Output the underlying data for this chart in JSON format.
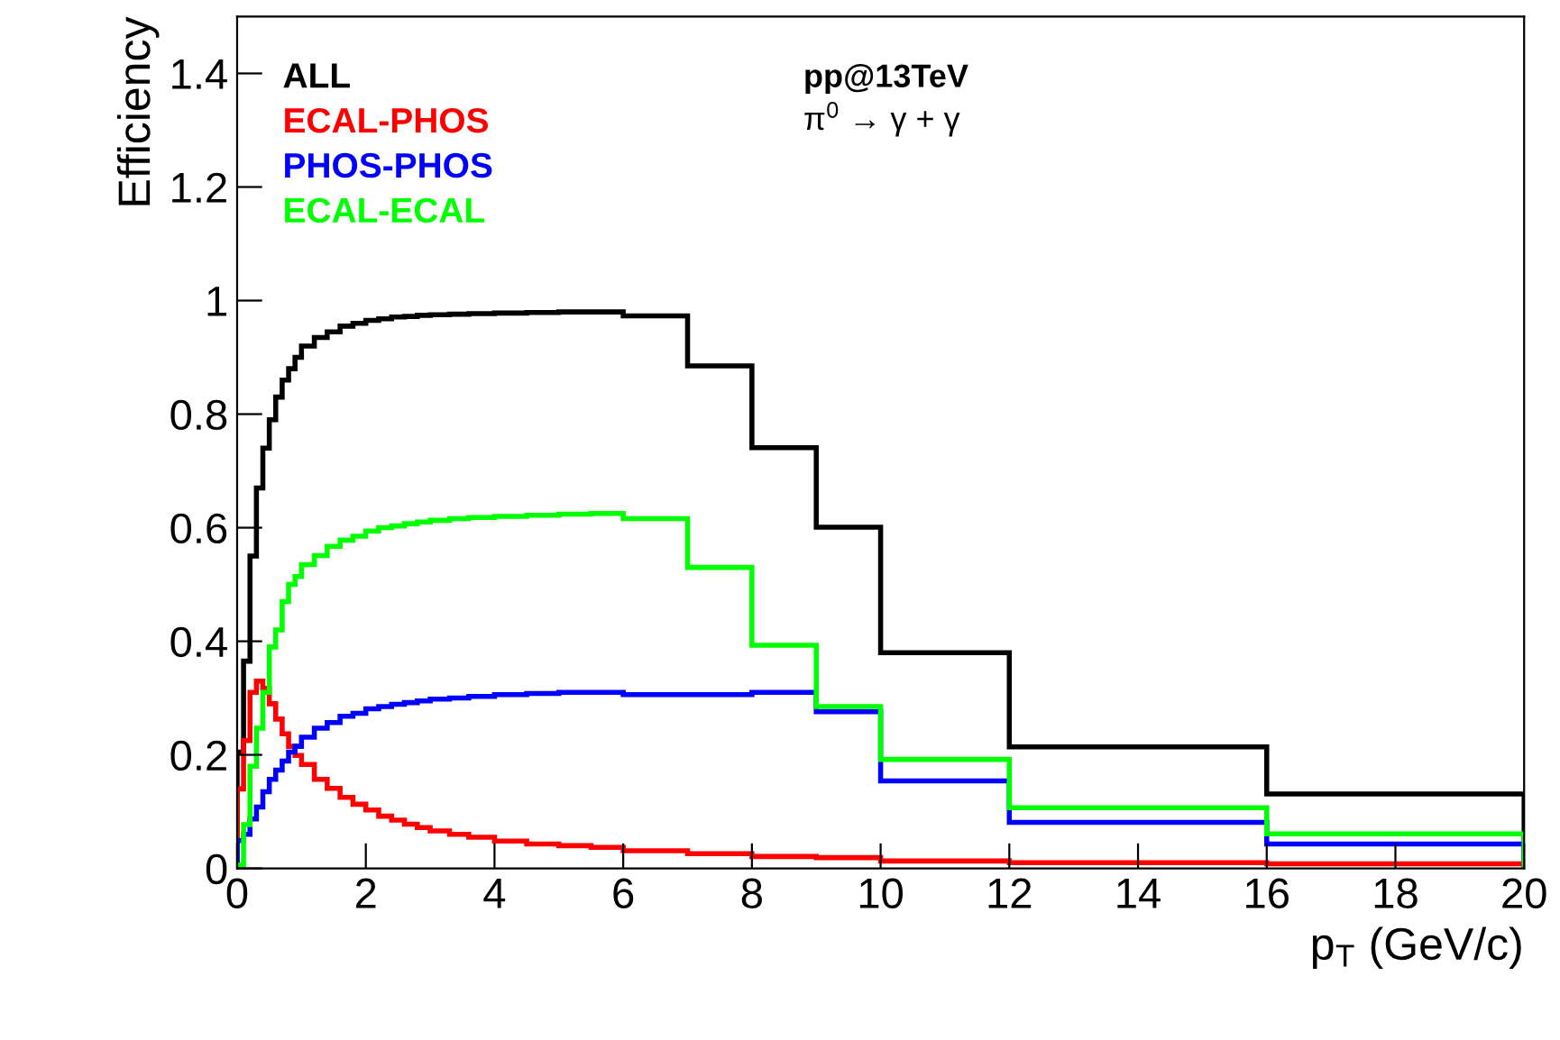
{
  "chart_data": {
    "type": "histogram",
    "xlabel": "p$_{T}$ (GeV/c)",
    "ylabel": "Efficiency",
    "annotations": [
      "pp@13TeV",
      "π$^{0}$ → γ + γ"
    ],
    "bins": [
      0,
      0.1,
      0.2,
      0.3,
      0.4,
      0.5,
      0.6,
      0.7,
      0.8,
      0.9,
      1.0,
      1.2,
      1.4,
      1.6,
      1.8,
      2.0,
      2.2,
      2.4,
      2.6,
      2.8,
      3.0,
      3.3,
      3.6,
      4.0,
      4.5,
      5.0,
      5.5,
      6,
      7,
      8,
      9,
      10,
      12,
      16,
      20
    ],
    "series": [
      {
        "name": "ALL",
        "color": "#000000",
        "values": [
          0.205,
          0.365,
          0.55,
          0.67,
          0.74,
          0.79,
          0.83,
          0.86,
          0.88,
          0.9,
          0.92,
          0.935,
          0.945,
          0.955,
          0.96,
          0.965,
          0.968,
          0.971,
          0.972,
          0.974,
          0.975,
          0.976,
          0.977,
          0.978,
          0.979,
          0.98,
          0.98,
          0.973,
          0.885,
          0.741,
          0.601,
          0.38,
          0.214,
          0.131
        ]
      },
      {
        "name": "ECAL-PHOS",
        "color": "#ff0000",
        "values": [
          0.14,
          0.225,
          0.31,
          0.33,
          0.317,
          0.29,
          0.263,
          0.237,
          0.215,
          0.199,
          0.183,
          0.157,
          0.141,
          0.125,
          0.113,
          0.103,
          0.092,
          0.085,
          0.078,
          0.072,
          0.066,
          0.06,
          0.055,
          0.048,
          0.043,
          0.04,
          0.037,
          0.031,
          0.026,
          0.021,
          0.019,
          0.013,
          0.01,
          0.008
        ]
      },
      {
        "name": "PHOS-PHOS",
        "color": "#0000ff",
        "values": [
          0.049,
          0.06,
          0.087,
          0.108,
          0.135,
          0.157,
          0.173,
          0.189,
          0.205,
          0.215,
          0.231,
          0.247,
          0.257,
          0.268,
          0.273,
          0.281,
          0.285,
          0.289,
          0.292,
          0.295,
          0.298,
          0.3,
          0.303,
          0.306,
          0.308,
          0.31,
          0.31,
          0.306,
          0.306,
          0.31,
          0.276,
          0.154,
          0.081,
          0.043
        ]
      },
      {
        "name": "ECAL-ECAL",
        "color": "#00ff00",
        "values": [
          0.006,
          0.077,
          0.18,
          0.247,
          0.31,
          0.39,
          0.42,
          0.47,
          0.5,
          0.514,
          0.535,
          0.551,
          0.567,
          0.578,
          0.585,
          0.594,
          0.6,
          0.603,
          0.607,
          0.61,
          0.613,
          0.616,
          0.618,
          0.62,
          0.622,
          0.624,
          0.625,
          0.616,
          0.53,
          0.393,
          0.285,
          0.192,
          0.107,
          0.061
        ]
      }
    ],
    "xlim": [
      0,
      20
    ],
    "xticks": [
      0,
      2,
      4,
      6,
      8,
      10,
      12,
      14,
      16,
      18,
      20
    ],
    "ylim": [
      0,
      1.5
    ],
    "yticks": [
      0,
      0.2,
      0.4,
      0.6,
      0.8,
      1,
      1.2,
      1.4
    ],
    "grid": false,
    "legend": "top left"
  }
}
